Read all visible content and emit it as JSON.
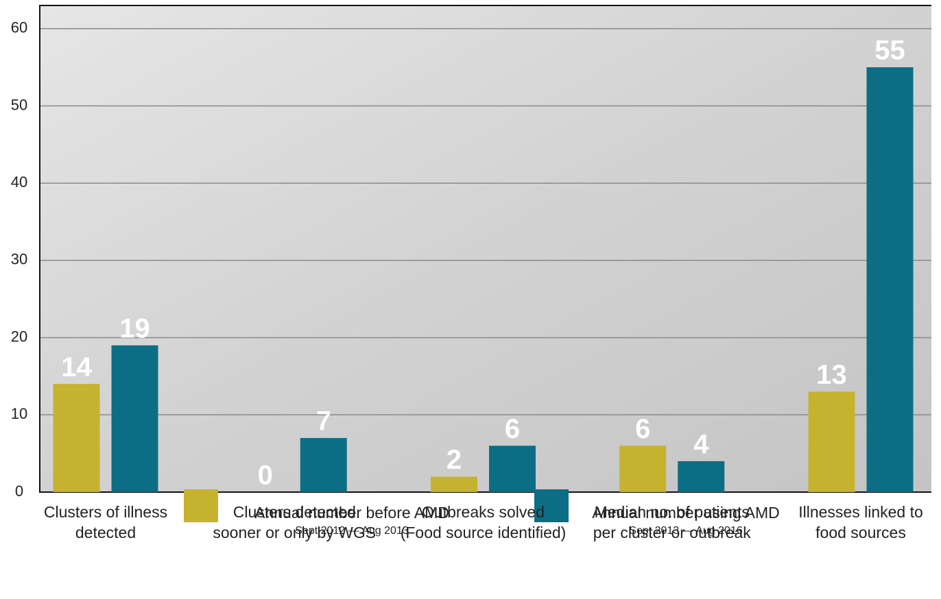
{
  "chart_data": {
    "type": "bar",
    "categories": [
      "Clusters of illness\ndetected",
      "Clusters detected\nsooner or only by WGS",
      "Outbreaks solved\n(Food source identified)",
      "Median no. of patients\nper cluster or outbreak",
      "Illnesses linked to\nfood sources"
    ],
    "series": [
      {
        "name": "Annual number before AMD",
        "period": "Sept 2012 — Aug 2013",
        "color": "#c5b22e",
        "values": [
          14,
          0,
          2,
          6,
          13
        ]
      },
      {
        "name": "Annual number using AMD",
        "period": "Sept 2013 — Aug 2016",
        "color": "#0b6e85",
        "values": [
          19,
          7,
          6,
          4,
          55
        ]
      }
    ],
    "ylim": [
      0,
      63
    ],
    "yticks": [
      0,
      10,
      20,
      30,
      40,
      50,
      60
    ],
    "grid": true
  }
}
